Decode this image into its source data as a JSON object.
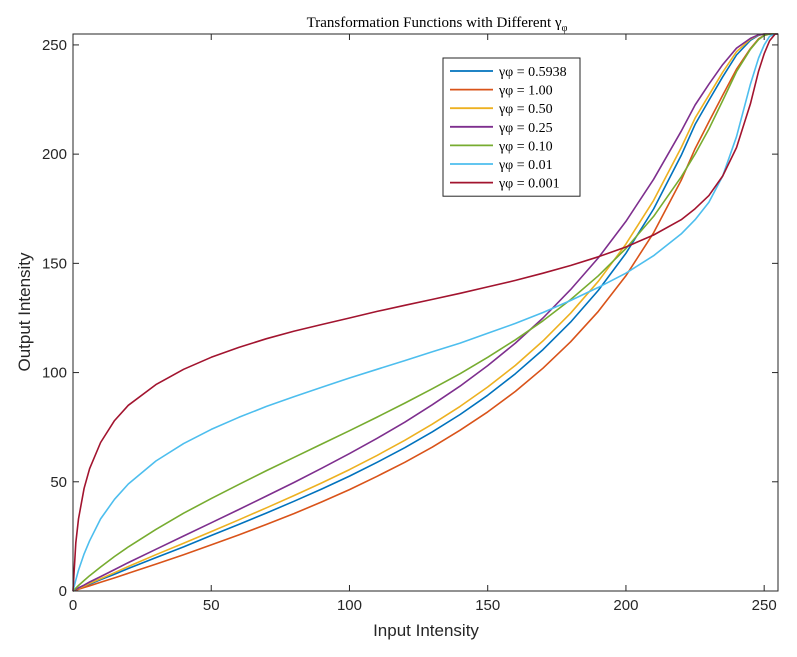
{
  "chart_data": {
    "type": "line",
    "title": "Transformation Functions with Different γ",
    "title_subscript": "φ",
    "xlabel": "Input Intensity",
    "ylabel": "Output Intensity",
    "xlim": [
      0,
      255
    ],
    "ylim": [
      0,
      255
    ],
    "x_ticks": [
      0,
      50,
      100,
      150,
      200,
      250
    ],
    "y_ticks": [
      0,
      50,
      100,
      150,
      200,
      250
    ],
    "grid": false,
    "legend_position": "top-right",
    "x": [
      0,
      1,
      2,
      4,
      6,
      10,
      15,
      20,
      30,
      40,
      50,
      60,
      70,
      80,
      90,
      100,
      110,
      120,
      130,
      140,
      150,
      160,
      170,
      180,
      190,
      200,
      210,
      220,
      225,
      230,
      235,
      240,
      245,
      248,
      250,
      252,
      254,
      255
    ],
    "series": [
      {
        "name": "γφ = 0.5938",
        "color": "#0072bd",
        "values": [
          0,
          0.5,
          1,
          2.1,
          3.1,
          5.2,
          7.7,
          10.3,
          15.3,
          20.2,
          25.4,
          30.5,
          35.7,
          41.1,
          46.7,
          52.6,
          58.9,
          65.6,
          72.9,
          80.8,
          89.6,
          99.5,
          110.5,
          123.1,
          137.6,
          154.6,
          174.9,
          199.4,
          213.6,
          224.6,
          235.4,
          245.4,
          252.1,
          254.4,
          255,
          255,
          255,
          255
        ]
      },
      {
        "name": "γφ = 1.00",
        "color": "#d95319",
        "values": [
          0,
          0.4,
          0.8,
          1.6,
          2.4,
          4.0,
          6.0,
          8.1,
          12.3,
          16.6,
          21.1,
          25.7,
          30.5,
          35.5,
          40.8,
          46.4,
          52.5,
          58.9,
          65.9,
          73.6,
          82.0,
          91.4,
          102.0,
          114.1,
          128.0,
          144.3,
          164.0,
          188.0,
          202.5,
          214.8,
          227.0,
          238.9,
          248.3,
          252.8,
          254.4,
          255,
          255,
          255
        ]
      },
      {
        "name": "γφ = 0.50",
        "color": "#edb120",
        "values": [
          0,
          0.6,
          1.2,
          2.3,
          3.5,
          5.6,
          8.4,
          11.2,
          16.6,
          21.9,
          27.2,
          32.6,
          38.1,
          43.7,
          49.5,
          55.6,
          62.1,
          69.0,
          76.4,
          84.5,
          93.4,
          103.3,
          114.5,
          127.2,
          141.8,
          158.8,
          178.8,
          203.0,
          216.5,
          227.0,
          237.5,
          246.9,
          252.6,
          254.6,
          255,
          255,
          255,
          255
        ]
      },
      {
        "name": "γφ = 0.25",
        "color": "#7e2f8e",
        "values": [
          0,
          0.7,
          1.4,
          2.7,
          4.1,
          6.6,
          9.8,
          13.0,
          19.1,
          25.2,
          31.2,
          37.3,
          43.5,
          49.7,
          56.2,
          62.9,
          69.9,
          77.3,
          85.3,
          93.8,
          103.2,
          113.5,
          125.0,
          138.0,
          152.5,
          169.2,
          188.5,
          210.5,
          222.5,
          232.0,
          241.0,
          248.5,
          253.0,
          254.7,
          255,
          255,
          255,
          255
        ]
      },
      {
        "name": "γφ = 0.10",
        "color": "#77ac30",
        "values": [
          0,
          1.3,
          2.5,
          4.8,
          7.0,
          11.0,
          15.8,
          20.2,
          28.2,
          35.6,
          42.3,
          48.8,
          55.1,
          61.2,
          67.3,
          73.4,
          79.6,
          86.0,
          92.6,
          99.5,
          107.0,
          115.0,
          123.7,
          133.4,
          144.3,
          156.8,
          171.5,
          189.6,
          200.0,
          211.5,
          224.5,
          237.8,
          248.0,
          252.5,
          254.3,
          255,
          255,
          255
        ]
      },
      {
        "name": "γφ = 0.01",
        "color": "#4dbeee",
        "values": [
          0,
          5.0,
          9.5,
          17.0,
          23.0,
          33.0,
          42.0,
          49.0,
          59.5,
          67.5,
          74.0,
          79.5,
          84.5,
          89.0,
          93.3,
          97.5,
          101.5,
          105.5,
          109.5,
          113.5,
          118.0,
          122.5,
          127.5,
          133.0,
          139.0,
          145.5,
          153.5,
          163.5,
          170.0,
          178.0,
          190.0,
          208.0,
          232.0,
          244.0,
          250.0,
          254.0,
          255,
          255
        ]
      },
      {
        "name": "γφ = 0.001",
        "color": "#a2142f",
        "values": [
          0,
          22.0,
          33.0,
          47.0,
          56.0,
          68.0,
          78.0,
          85.0,
          94.5,
          101.5,
          107.0,
          111.5,
          115.5,
          119.0,
          122.0,
          125.0,
          128.0,
          130.8,
          133.5,
          136.3,
          139.2,
          142.2,
          145.5,
          149.0,
          153.0,
          157.5,
          163.0,
          170.0,
          175.0,
          181.0,
          190.0,
          203.0,
          223.0,
          238.0,
          246.0,
          252.0,
          255,
          255
        ]
      }
    ]
  }
}
